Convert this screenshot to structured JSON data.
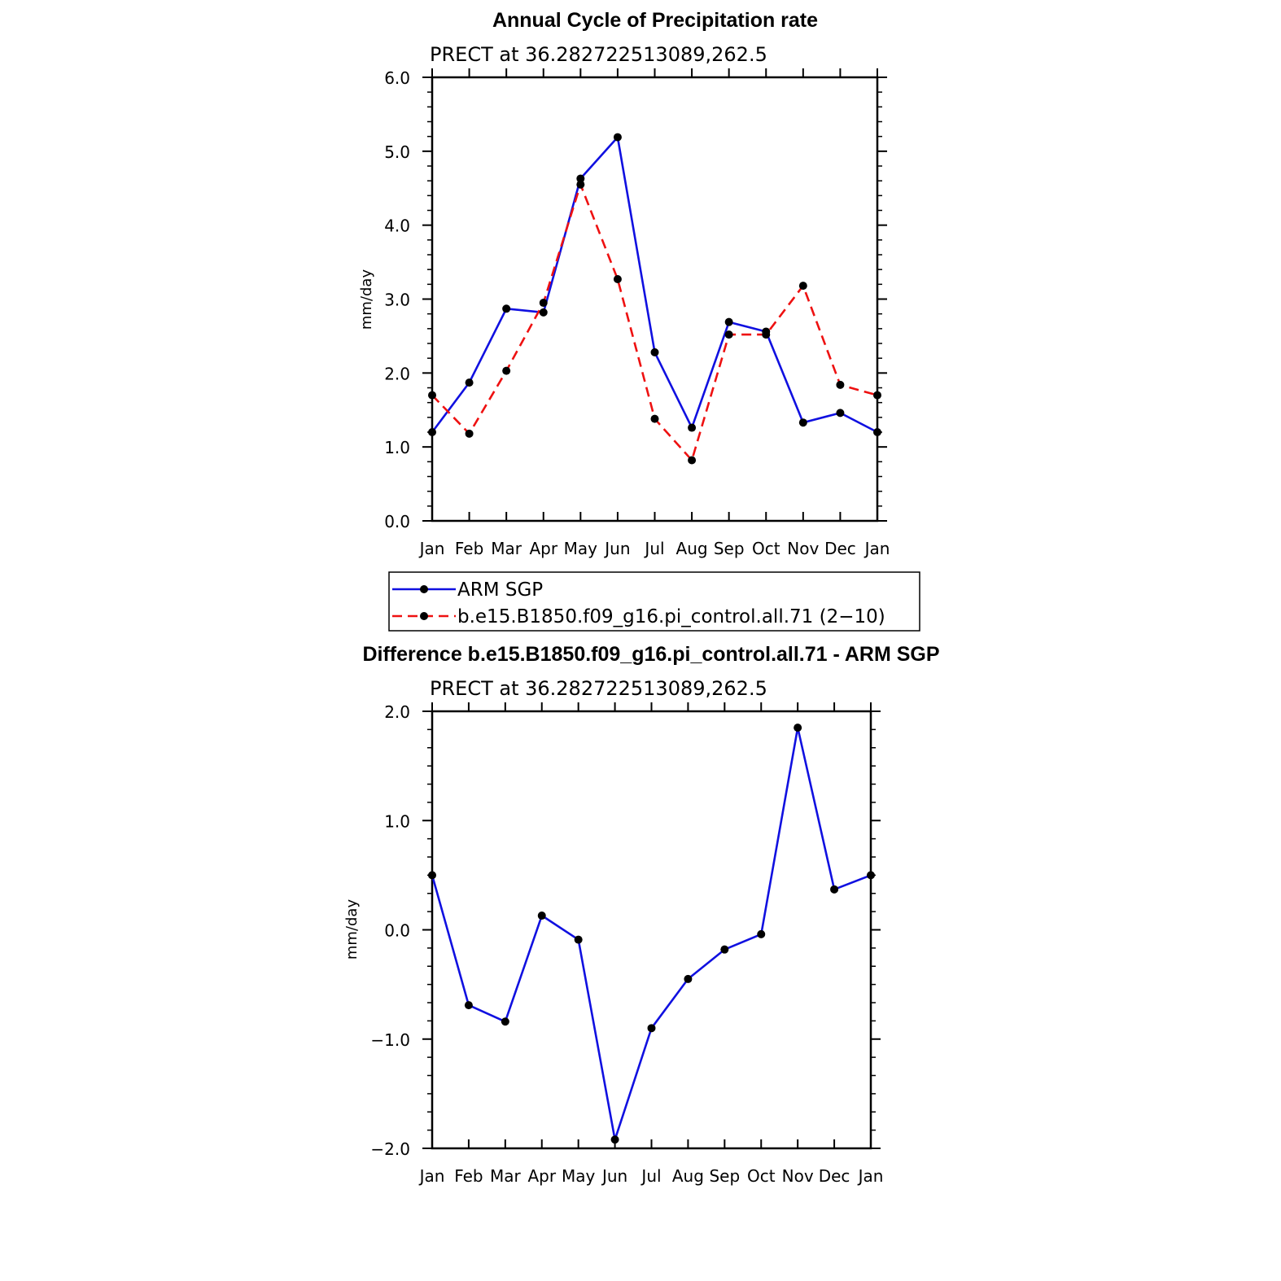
{
  "colors": {
    "arm_sgp": "#1010e0",
    "model": "#ee1111",
    "marker": "#000000",
    "axis": "#000000"
  },
  "legend": {
    "entries": [
      {
        "label": "ARM SGP",
        "series": 0
      },
      {
        "label": "b.e15.B1850.f09_g16.pi_control.all.71 (2−10)",
        "series": 1
      }
    ]
  },
  "chart_data": [
    {
      "type": "line",
      "title": "Annual Cycle of Precipitation rate",
      "subtitle": "PRECT at 36.282722513089,262.5",
      "xlabel": "",
      "ylabel": "mm/day",
      "categories": [
        "Jan",
        "Feb",
        "Mar",
        "Apr",
        "May",
        "Jun",
        "Jul",
        "Aug",
        "Sep",
        "Oct",
        "Nov",
        "Dec",
        "Jan"
      ],
      "ylim": [
        0.0,
        6.0
      ],
      "yticks": [
        0.0,
        1.0,
        2.0,
        3.0,
        4.0,
        5.0,
        6.0
      ],
      "ytick_labels": [
        "0.0",
        "1.0",
        "2.0",
        "3.0",
        "4.0",
        "5.0",
        "6.0"
      ],
      "series": [
        {
          "name": "ARM SGP",
          "style": "solid",
          "values": [
            1.2,
            1.87,
            2.87,
            2.82,
            4.63,
            5.19,
            2.28,
            1.26,
            2.69,
            2.56,
            1.33,
            1.46,
            1.2
          ]
        },
        {
          "name": "b.e15.B1850.f09_g16.pi_control.all.71 (2−10)",
          "style": "dashed",
          "values": [
            1.7,
            1.18,
            2.03,
            2.95,
            4.55,
            3.27,
            1.38,
            0.82,
            2.52,
            2.52,
            3.18,
            1.84,
            1.7
          ]
        }
      ]
    },
    {
      "type": "line",
      "title": "Difference b.e15.B1850.f09_g16.pi_control.all.71 - ARM SGP",
      "subtitle": "PRECT at 36.282722513089,262.5",
      "xlabel": "",
      "ylabel": "mm/day",
      "categories": [
        "Jan",
        "Feb",
        "Mar",
        "Apr",
        "May",
        "Jun",
        "Jul",
        "Aug",
        "Sep",
        "Oct",
        "Nov",
        "Dec",
        "Jan"
      ],
      "ylim": [
        -2.0,
        2.0
      ],
      "yticks": [
        -2.0,
        -1.0,
        0.0,
        1.0,
        2.0
      ],
      "ytick_labels": [
        "−2.0",
        "−1.0",
        "0.0",
        "1.0",
        "2.0"
      ],
      "series": [
        {
          "name": "Difference",
          "style": "solid",
          "values": [
            0.5,
            -0.69,
            -0.84,
            0.13,
            -0.09,
            -1.92,
            -0.9,
            -0.45,
            -0.18,
            -0.04,
            1.85,
            0.37,
            0.5
          ]
        }
      ]
    }
  ]
}
